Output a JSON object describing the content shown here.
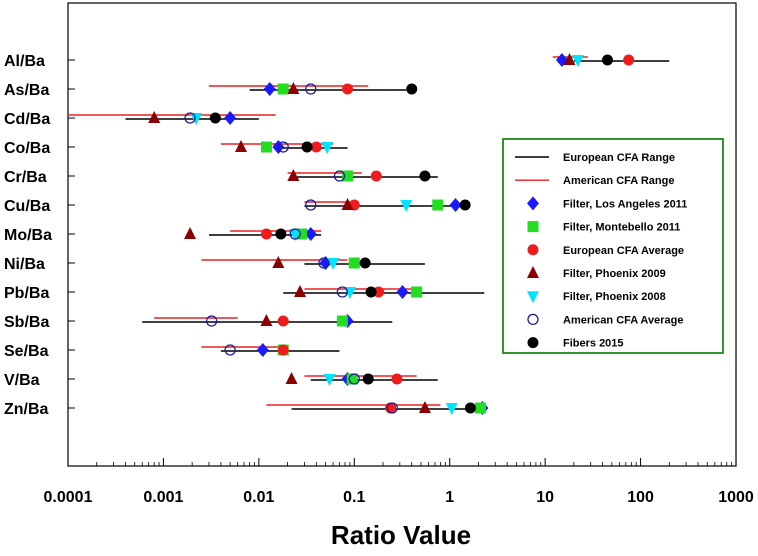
{
  "chart_data": {
    "type": "scatter",
    "title": "",
    "xlabel": "Ratio Value",
    "ylabel": "",
    "xscale": "log",
    "xlim": [
      0.0001,
      1000
    ],
    "x_ticks": [
      "0.0001",
      "0.001",
      "0.01",
      "0.1",
      "1",
      "10",
      "100",
      "1000"
    ],
    "grid": false,
    "legend_position": "right",
    "categories": [
      "Al/Ba",
      "As/Ba",
      "Cd/Ba",
      "Co/Ba",
      "Cr/Ba",
      "Cu/Ba",
      "Mo/Ba",
      "Ni/Ba",
      "Pb/Ba",
      "Sb/Ba",
      "Se/Ba",
      "V/Ba",
      "Zn/Ba"
    ],
    "ranges": [
      {
        "name": "European CFA Range",
        "color": "#000000",
        "values": [
          [
            20,
            200
          ],
          [
            0.008,
            0.35
          ],
          [
            0.0004,
            0.01
          ],
          [
            0.015,
            0.085
          ],
          [
            0.025,
            0.75
          ],
          [
            0.03,
            1.5
          ],
          [
            0.003,
            0.045
          ],
          [
            0.03,
            0.55
          ],
          [
            0.018,
            2.3
          ],
          [
            0.0006,
            0.25
          ],
          [
            0.004,
            0.07
          ],
          [
            0.035,
            0.75
          ],
          [
            0.022,
            2.0
          ]
        ]
      },
      {
        "name": "American CFA Range",
        "color": "#e8201e",
        "values": [
          [
            12,
            28
          ],
          [
            0.003,
            0.14
          ],
          [
            0.0001,
            0.015
          ],
          [
            0.004,
            0.06
          ],
          [
            0.02,
            0.12
          ],
          [
            0.03,
            0.09
          ],
          [
            0.005,
            0.045
          ],
          [
            0.0025,
            0.085
          ],
          [
            0.03,
            0.45
          ],
          [
            0.0008,
            0.006
          ],
          [
            0.0025,
            0.018
          ],
          [
            0.03,
            0.45
          ],
          [
            0.012,
            0.8
          ]
        ]
      }
    ],
    "series": [
      {
        "name": "Filter, Los Angeles 2011",
        "marker": "diamond",
        "color": "#1a1aff",
        "values": [
          15,
          0.013,
          0.005,
          0.016,
          null,
          1.15,
          0.035,
          0.05,
          0.32,
          0.085,
          0.011,
          0.085,
          2.2
        ]
      },
      {
        "name": "Filter, Montebello 2011",
        "marker": "square",
        "color": "#22dd22",
        "values": [
          null,
          0.018,
          null,
          0.012,
          0.085,
          0.75,
          0.028,
          0.1,
          0.45,
          0.075,
          0.018,
          0.095,
          2.1
        ]
      },
      {
        "name": "European CFA Average",
        "marker": "circle",
        "color": "#ee1c1c",
        "values": [
          75,
          0.085,
          null,
          0.04,
          0.17,
          0.1,
          0.012,
          null,
          0.18,
          0.018,
          0.018,
          0.28,
          0.24
        ]
      },
      {
        "name": "Filter, Phoenix 2009",
        "marker": "triangle",
        "color": "#8b0000",
        "values": [
          18,
          0.023,
          0.0008,
          0.0065,
          0.023,
          0.085,
          0.0019,
          0.016,
          0.027,
          0.012,
          null,
          0.022,
          0.55
        ]
      },
      {
        "name": "Filter, Phoenix 2008",
        "marker": "triangle-down",
        "color": "#00e5ff",
        "values": [
          22,
          null,
          0.0022,
          0.052,
          null,
          0.35,
          0.024,
          0.06,
          0.09,
          null,
          null,
          0.055,
          1.05
        ]
      },
      {
        "name": "American CFA Average",
        "marker": "open-circle",
        "color": "#1c1c9c",
        "values": [
          null,
          0.035,
          0.0019,
          0.018,
          0.07,
          0.035,
          0.024,
          0.048,
          0.075,
          0.0032,
          0.005,
          0.1,
          0.25
        ]
      },
      {
        "name": "Fibers 2015",
        "marker": "circle",
        "color": "#000000",
        "values": [
          45,
          0.4,
          0.0035,
          0.032,
          0.55,
          1.45,
          0.017,
          0.13,
          0.15,
          null,
          null,
          0.14,
          1.65
        ]
      }
    ]
  },
  "legend": {
    "items": [
      {
        "label": "European CFA Range",
        "color": "#000000"
      },
      {
        "label": "American CFA Range",
        "color": "#000000"
      },
      {
        "label": "Filter, Los Angeles 2011",
        "color": "#000000"
      },
      {
        "label": "Filter, Montebello 2011",
        "color": "#000000"
      },
      {
        "label": "European CFA Average",
        "color": "#000000"
      },
      {
        "label": "Filter, Phoenix 2009",
        "color": "#000000"
      },
      {
        "label": "Filter, Phoenix 2008",
        "color": "#000000"
      },
      {
        "label": "American CFA Average",
        "color": "#000000"
      },
      {
        "label": "Fibers 2015",
        "color": "#e8201e"
      }
    ],
    "border_color": "#1a8a1a"
  }
}
